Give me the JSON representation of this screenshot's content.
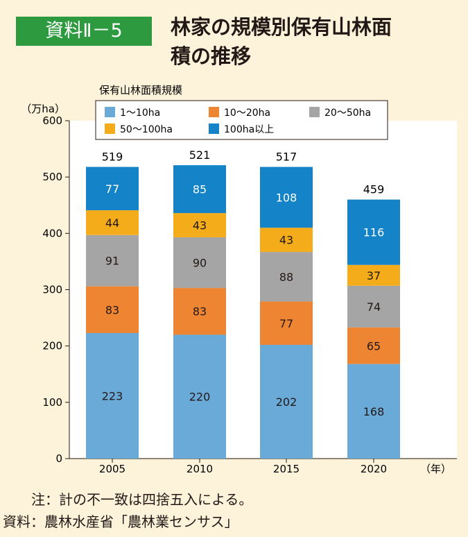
{
  "header": {
    "badge": "資料Ⅱ－5",
    "title": "林家の規模別保有山林面\n積の推移"
  },
  "chart_data": {
    "type": "bar",
    "stacked": true,
    "legend_title": "保有山林面積規模",
    "ylabel": "（万ha）",
    "xlabel": "（年）",
    "ylim": [
      0,
      600
    ],
    "yticks": [
      0,
      100,
      200,
      300,
      400,
      500,
      600
    ],
    "categories": [
      "2005",
      "2010",
      "2015",
      "2020"
    ],
    "totals": [
      519,
      521,
      517,
      459
    ],
    "series": [
      {
        "name": "1～10ha",
        "color": "#6aaad9",
        "values": [
          223,
          220,
          202,
          168
        ]
      },
      {
        "name": "10～20ha",
        "color": "#ee8533",
        "values": [
          83,
          83,
          77,
          65
        ]
      },
      {
        "name": "20～50ha",
        "color": "#a5a5a5",
        "values": [
          91,
          90,
          88,
          74
        ]
      },
      {
        "name": "50～100ha",
        "color": "#f5ac1b",
        "values": [
          44,
          43,
          43,
          37
        ]
      },
      {
        "name": "100ha以上",
        "color": "#1583c7",
        "values": [
          77,
          85,
          108,
          116
        ]
      }
    ],
    "grid": false,
    "legend_position": "top"
  },
  "notes": {
    "note": "注：計の不一致は四捨五入による。",
    "source": "資料：農林水産省「農林業センサス」"
  }
}
